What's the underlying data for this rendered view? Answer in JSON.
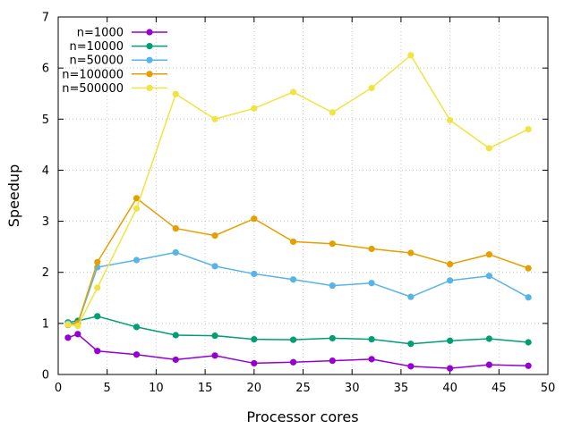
{
  "chart_data": {
    "type": "line",
    "title": "",
    "xlabel": "Processor cores",
    "ylabel": "Speedup",
    "xlim": [
      0,
      50
    ],
    "ylim": [
      0,
      7
    ],
    "xticks": [
      "0",
      "5",
      "10",
      "15",
      "20",
      "25",
      "30",
      "35",
      "40",
      "45",
      "50"
    ],
    "yticks": [
      "0",
      "1",
      "2",
      "3",
      "4",
      "5",
      "6",
      "7"
    ],
    "grid": true,
    "legend_position": "top-left",
    "x": [
      1,
      2,
      4,
      8,
      12,
      16,
      20,
      24,
      28,
      32,
      36,
      40,
      44,
      48
    ],
    "series": [
      {
        "name": "n=1000",
        "color": "#9400d3",
        "values": [
          0.72,
          0.79,
          0.46,
          0.39,
          0.29,
          0.37,
          0.22,
          0.24,
          0.27,
          0.3,
          0.16,
          0.12,
          0.19,
          0.17
        ]
      },
      {
        "name": "n=10000",
        "color": "#009e73",
        "values": [
          1.02,
          1.05,
          1.14,
          0.93,
          0.77,
          0.76,
          0.69,
          0.68,
          0.71,
          0.69,
          0.6,
          0.66,
          0.7,
          0.63
        ]
      },
      {
        "name": "n=50000",
        "color": "#56b4e9",
        "values": [
          1.0,
          1.0,
          2.1,
          2.24,
          2.39,
          2.12,
          1.97,
          1.86,
          1.74,
          1.79,
          1.52,
          1.84,
          1.93,
          1.51
        ]
      },
      {
        "name": "n=100000",
        "color": "#e69f00",
        "values": [
          0.97,
          1.0,
          2.2,
          3.45,
          2.86,
          2.72,
          3.05,
          2.6,
          2.56,
          2.46,
          2.38,
          2.16,
          2.35,
          2.08
        ]
      },
      {
        "name": "n=500000",
        "color": "#f0e442",
        "values": [
          0.98,
          0.95,
          1.7,
          3.25,
          5.49,
          5.0,
          5.21,
          5.53,
          5.13,
          5.61,
          6.25,
          4.98,
          4.43,
          4.8
        ]
      }
    ]
  }
}
